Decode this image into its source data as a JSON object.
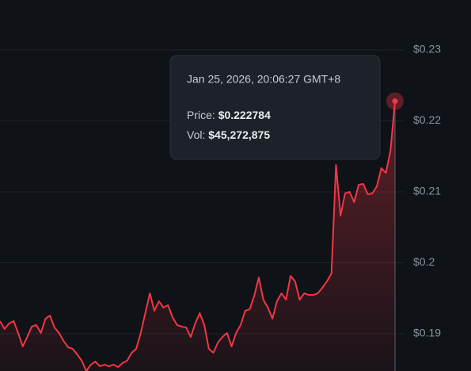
{
  "chart_data": {
    "type": "line",
    "categories": [
      null,
      null,
      null,
      null,
      null,
      null,
      null,
      null,
      null,
      null,
      null,
      null,
      null,
      null,
      null,
      null,
      null,
      null,
      null,
      null,
      null,
      null,
      null,
      null,
      null,
      null,
      null,
      null,
      null,
      null,
      null,
      null,
      null,
      null,
      null,
      null,
      null,
      null,
      null,
      null,
      null,
      null,
      null,
      null,
      null,
      null,
      null,
      null,
      null,
      null,
      null,
      null,
      null,
      null,
      null,
      null,
      null,
      null,
      null,
      null,
      null,
      null,
      null,
      null,
      null,
      null,
      null,
      null,
      null,
      null,
      null,
      null,
      null,
      null,
      null,
      null,
      null,
      null,
      null,
      null,
      null,
      null,
      null,
      null,
      null,
      null,
      null,
      null
    ],
    "values": [
      0.19179,
      0.19067,
      0.19145,
      0.19179,
      0.19011,
      0.18821,
      0.18955,
      0.19101,
      0.19123,
      0.19011,
      0.19212,
      0.19257,
      0.19089,
      0.19011,
      0.18899,
      0.1881,
      0.18788,
      0.18709,
      0.1862,
      0.18475,
      0.18564,
      0.18609,
      0.18542,
      0.18564,
      0.18542,
      0.18564,
      0.18531,
      0.18587,
      0.1862,
      0.18732,
      0.18788,
      0.19011,
      0.1929,
      0.1957,
      0.19324,
      0.19458,
      0.19369,
      0.19402,
      0.19235,
      0.19123,
      0.19101,
      0.19089,
      0.18955,
      0.19145,
      0.1929,
      0.19123,
      0.18788,
      0.18732,
      0.18877,
      0.18955,
      0.19011,
      0.18821,
      0.19011,
      0.19123,
      0.19324,
      0.19346,
      0.19536,
      0.19793,
      0.1948,
      0.19369,
      0.19212,
      0.19458,
      0.1957,
      0.1948,
      0.19816,
      0.19737,
      0.1948,
      0.1957,
      0.19547,
      0.19547,
      0.1957,
      0.19648,
      0.19737,
      0.19849,
      0.2138,
      0.20665,
      0.20978,
      0.21,
      0.20855,
      0.211,
      0.21112,
      0.20966,
      0.20978,
      0.21078,
      0.21335,
      0.21268,
      0.21581,
      0.222784
    ],
    "color": "#f23645",
    "ylim": [
      0.18475,
      0.23704
    ],
    "yticks": [
      {
        "value": 0.19,
        "label": "$0.19"
      },
      {
        "value": 0.2,
        "label": "$0.2"
      },
      {
        "value": 0.21,
        "label": "$0.21"
      },
      {
        "value": 0.22,
        "label": "$0.22"
      },
      {
        "value": 0.23,
        "label": "$0.23"
      }
    ],
    "grid": true
  },
  "tooltip": {
    "date": "Jan 25, 2026, 20:06:27 GMT+8",
    "price_label": "Price:",
    "price": "$0.222784",
    "volume_label": "Vol:",
    "volume": "$45,272,875"
  }
}
